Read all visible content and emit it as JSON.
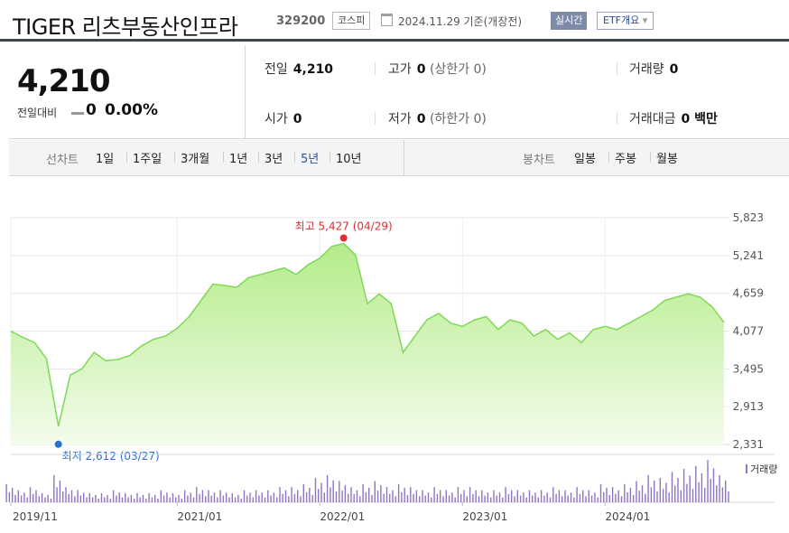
{
  "header": {
    "name": "TIGER 리츠부동산인프라",
    "code": "329200",
    "market": "코스피",
    "date": "2024.11.29  기준(개장전)",
    "realtime": "실시간",
    "etf_info": "ETF개요",
    "etf_caret": "▾"
  },
  "summary": {
    "price": "4,210",
    "change_label": "전일대비",
    "change_value": "0",
    "change_pct": "0.00%",
    "prev_close_label": "전일",
    "prev_close": "4,210",
    "high_label": "고가",
    "high": "0",
    "upper_limit": "(상한가 0)",
    "volume_label": "거래량",
    "volume": "0",
    "open_label": "시가",
    "open": "0",
    "low_label": "저가",
    "low": "0",
    "lower_limit": "(하한가 0)",
    "amount_label": "거래대금",
    "amount": "0 백만"
  },
  "toolbar": {
    "line_label": "선차트",
    "line_periods": [
      "1일",
      "1주일",
      "3개월",
      "1년",
      "3년",
      "5년",
      "10년"
    ],
    "active_period": "5년",
    "candle_label": "봉차트",
    "candle_periods": [
      "일봉",
      "주봉",
      "월봉"
    ]
  },
  "chart_data": {
    "type": "area",
    "title": "",
    "xlabel": "",
    "ylabel": "",
    "ylim": [
      2331,
      5823
    ],
    "yticks": [
      "5,823",
      "5,241",
      "4,659",
      "4,077",
      "3,495",
      "2,913",
      "2,331"
    ],
    "xticks": [
      "2019/11",
      "2021/01",
      "2022/01",
      "2023/01",
      "2024/01"
    ],
    "grid": true,
    "fill_color": "#c8efa6",
    "line_color": "#7ed957",
    "volume_color": "#8e74c4",
    "volume_label": "거래량",
    "high_annotation": "최고 5,427 (04/29)",
    "low_annotation": "최저 2,612 (03/27)",
    "high_value": 5427,
    "low_value": 2612,
    "x": [
      "2019-11",
      "2019-12",
      "2020-01",
      "2020-02",
      "2020-03",
      "2020-04",
      "2020-05",
      "2020-06",
      "2020-07",
      "2020-08",
      "2020-09",
      "2020-10",
      "2020-11",
      "2020-12",
      "2021-01",
      "2021-02",
      "2021-03",
      "2021-04",
      "2021-05",
      "2021-06",
      "2021-07",
      "2021-08",
      "2021-09",
      "2021-10",
      "2021-11",
      "2021-12",
      "2022-01",
      "2022-02",
      "2022-03",
      "2022-04",
      "2022-05",
      "2022-06",
      "2022-07",
      "2022-08",
      "2022-09",
      "2022-10",
      "2022-11",
      "2022-12",
      "2023-01",
      "2023-02",
      "2023-03",
      "2023-04",
      "2023-05",
      "2023-06",
      "2023-07",
      "2023-08",
      "2023-09",
      "2023-10",
      "2023-11",
      "2023-12",
      "2024-01",
      "2024-02",
      "2024-03",
      "2024-04",
      "2024-05",
      "2024-06",
      "2024-07",
      "2024-08",
      "2024-09",
      "2024-10",
      "2024-11"
    ],
    "values": [
      4077,
      3980,
      3900,
      3650,
      2612,
      3400,
      3500,
      3750,
      3620,
      3640,
      3700,
      3850,
      3950,
      4000,
      4120,
      4300,
      4550,
      4800,
      4780,
      4750,
      4900,
      4950,
      5000,
      5050,
      4950,
      5100,
      5200,
      5380,
      5427,
      5250,
      4500,
      4650,
      4500,
      3750,
      4000,
      4250,
      4350,
      4200,
      4150,
      4250,
      4300,
      4100,
      4250,
      4200,
      4000,
      4100,
      3950,
      4050,
      3900,
      4100,
      4150,
      4100,
      4200,
      4300,
      4400,
      4550,
      4600,
      4650,
      4600,
      4450,
      4210
    ],
    "volume": [
      6,
      4,
      5,
      3,
      9,
      5,
      4,
      3,
      3,
      4,
      3,
      3,
      3,
      4,
      3,
      4,
      5,
      4,
      4,
      3,
      4,
      4,
      4,
      5,
      5,
      6,
      8,
      9,
      7,
      5,
      6,
      7,
      5,
      6,
      5,
      4,
      5,
      4,
      5,
      5,
      4,
      4,
      5,
      4,
      4,
      4,
      5,
      4,
      5,
      4,
      6,
      5,
      6,
      7,
      9,
      8,
      10,
      11,
      12,
      14,
      9
    ]
  }
}
